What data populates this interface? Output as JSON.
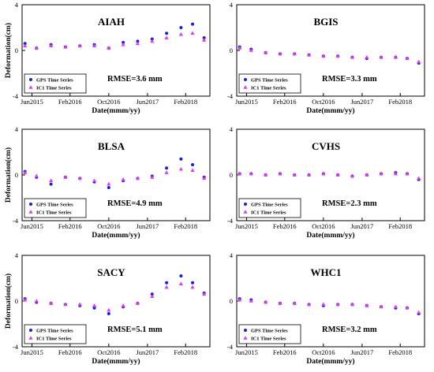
{
  "style": {
    "gps_color": "#1a1aee",
    "ic1_color": "#e23ce6"
  },
  "chart_data": [
    {
      "type": "scatter",
      "title": "AIAH",
      "xlabel": "Date(mmm/yy)",
      "ylabel": "Deformation(cm)",
      "xlim": [
        2015.25,
        2018.5
      ],
      "ylim": [
        -4,
        4
      ],
      "x_ticks": [
        2015.42,
        2016.08,
        2016.75,
        2017.42,
        2018.08
      ],
      "x_ticklabels": [
        "Jun2015",
        "Feb2016",
        "Oct2016",
        "Jun2017",
        "Feb2018"
      ],
      "y_ticks": [
        4,
        0,
        -4
      ],
      "y_ticklabels": [
        "4",
        "0",
        "-4"
      ],
      "annotation": "RMSE=3.6 mm",
      "legend": {
        "position": "bottom-left",
        "entries": [
          "GPS Time Series",
          "IC1 Time Series"
        ]
      },
      "series": [
        {
          "name": "GPS Time Series",
          "marker": "circle",
          "color": "#1a1aee",
          "x": [
            2015.3,
            2015.5,
            2015.75,
            2016.0,
            2016.25,
            2016.5,
            2016.75,
            2017.0,
            2017.25,
            2017.5,
            2017.75,
            2018.0,
            2018.2,
            2018.4
          ],
          "y": [
            0.6,
            0.2,
            0.5,
            0.3,
            0.4,
            0.5,
            0.2,
            0.7,
            0.8,
            1.0,
            1.5,
            2.0,
            2.3,
            1.1
          ]
        },
        {
          "name": "IC1 Time Series",
          "marker": "triangle",
          "color": "#e23ce6",
          "x": [
            2015.3,
            2015.5,
            2015.75,
            2016.0,
            2016.25,
            2016.5,
            2016.75,
            2017.0,
            2017.25,
            2017.5,
            2017.75,
            2018.0,
            2018.2,
            2018.4
          ],
          "y": [
            0.4,
            0.2,
            0.4,
            0.3,
            0.4,
            0.4,
            0.2,
            0.5,
            0.6,
            0.8,
            1.1,
            1.4,
            1.5,
            0.9
          ]
        }
      ]
    },
    {
      "type": "scatter",
      "title": "BGIS",
      "xlabel": "Date(mmm/yy)",
      "ylabel": "",
      "xlim": [
        2015.25,
        2018.5
      ],
      "ylim": [
        -4,
        4
      ],
      "x_ticks": [
        2015.42,
        2016.08,
        2016.75,
        2017.42,
        2018.08
      ],
      "x_ticklabels": [
        "Jun2015",
        "Feb2016",
        "Oct2016",
        "Jun2017",
        "Feb2018"
      ],
      "y_ticks": [
        4,
        0,
        -4
      ],
      "y_ticklabels": [
        "4",
        "0",
        "-4"
      ],
      "annotation": "RMSE=3.3 mm",
      "legend": {
        "position": "bottom-left",
        "entries": [
          "GPS Time Series",
          "IC1 Time Series"
        ]
      },
      "series": [
        {
          "name": "GPS Time Series",
          "marker": "circle",
          "color": "#1a1aee",
          "x": [
            2015.3,
            2015.5,
            2015.75,
            2016.0,
            2016.25,
            2016.5,
            2016.75,
            2017.0,
            2017.25,
            2017.5,
            2017.75,
            2018.0,
            2018.2,
            2018.4
          ],
          "y": [
            0.3,
            0.1,
            -0.2,
            -0.3,
            -0.3,
            -0.4,
            -0.5,
            -0.5,
            -0.6,
            -0.7,
            -0.6,
            -0.6,
            -0.7,
            -1.1
          ]
        },
        {
          "name": "IC1 Time Series",
          "marker": "triangle",
          "color": "#e23ce6",
          "x": [
            2015.3,
            2015.5,
            2015.75,
            2016.0,
            2016.25,
            2016.5,
            2016.75,
            2017.0,
            2017.25,
            2017.5,
            2017.75,
            2018.0,
            2018.2,
            2018.4
          ],
          "y": [
            0.2,
            0.0,
            -0.2,
            -0.3,
            -0.3,
            -0.4,
            -0.5,
            -0.5,
            -0.6,
            -0.6,
            -0.6,
            -0.6,
            -0.7,
            -1.0
          ]
        }
      ]
    },
    {
      "type": "scatter",
      "title": "BLSA",
      "xlabel": "Date(mmm/yy)",
      "ylabel": "Deformation(cm)",
      "xlim": [
        2015.25,
        2018.5
      ],
      "ylim": [
        -4,
        4
      ],
      "x_ticks": [
        2015.42,
        2016.08,
        2016.75,
        2017.42,
        2018.08
      ],
      "x_ticklabels": [
        "Jun2015",
        "Feb2016",
        "Oct2016",
        "Jun2017",
        "Feb2018"
      ],
      "y_ticks": [
        4,
        0,
        -4
      ],
      "y_ticklabels": [
        "4",
        "0",
        "-4"
      ],
      "annotation": "RMSE=4.9 mm",
      "legend": {
        "position": "bottom-left",
        "entries": [
          "GPS Time Series",
          "IC1 Time Series"
        ]
      },
      "series": [
        {
          "name": "GPS Time Series",
          "marker": "circle",
          "color": "#1a1aee",
          "x": [
            2015.3,
            2015.5,
            2015.75,
            2016.0,
            2016.25,
            2016.5,
            2016.75,
            2017.0,
            2017.25,
            2017.5,
            2017.75,
            2018.0,
            2018.2,
            2018.4
          ],
          "y": [
            0.3,
            -0.2,
            -0.8,
            -0.2,
            -0.3,
            -0.6,
            -1.1,
            -0.5,
            -0.3,
            -0.1,
            0.6,
            1.4,
            0.9,
            -0.2
          ]
        },
        {
          "name": "IC1 Time Series",
          "marker": "triangle",
          "color": "#e23ce6",
          "x": [
            2015.3,
            2015.5,
            2015.75,
            2016.0,
            2016.25,
            2016.5,
            2016.75,
            2017.0,
            2017.25,
            2017.5,
            2017.75,
            2018.0,
            2018.2,
            2018.4
          ],
          "y": [
            0.2,
            -0.1,
            -0.5,
            -0.2,
            -0.3,
            -0.5,
            -0.8,
            -0.4,
            -0.3,
            -0.2,
            0.2,
            0.5,
            0.4,
            -0.3
          ]
        }
      ]
    },
    {
      "type": "scatter",
      "title": "CVHS",
      "xlabel": "Date(mmm/yy)",
      "ylabel": "",
      "xlim": [
        2015.25,
        2018.5
      ],
      "ylim": [
        -4,
        4
      ],
      "x_ticks": [
        2015.42,
        2016.08,
        2016.75,
        2017.42,
        2018.08
      ],
      "x_ticklabels": [
        "Jun2015",
        "Feb2016",
        "Oct2016",
        "Jun2017",
        "Feb2018"
      ],
      "y_ticks": [
        4,
        0,
        -4
      ],
      "y_ticklabels": [
        "4",
        "0",
        "-4"
      ],
      "annotation": "RMSE=2.3 mm",
      "legend": {
        "position": "bottom-left",
        "entries": [
          "GPS Time Series",
          "IC1 Time Series"
        ]
      },
      "series": [
        {
          "name": "GPS Time Series",
          "marker": "circle",
          "color": "#1a1aee",
          "x": [
            2015.3,
            2015.5,
            2015.75,
            2016.0,
            2016.25,
            2016.5,
            2016.75,
            2017.0,
            2017.25,
            2017.5,
            2017.75,
            2018.0,
            2018.2,
            2018.4
          ],
          "y": [
            0.1,
            0.1,
            0.0,
            0.1,
            0.0,
            0.0,
            0.1,
            0.0,
            -0.1,
            0.0,
            0.1,
            0.2,
            0.1,
            -0.4
          ]
        },
        {
          "name": "IC1 Time Series",
          "marker": "triangle",
          "color": "#e23ce6",
          "x": [
            2015.3,
            2015.5,
            2015.75,
            2016.0,
            2016.25,
            2016.5,
            2016.75,
            2017.0,
            2017.25,
            2017.5,
            2017.75,
            2018.0,
            2018.2,
            2018.4
          ],
          "y": [
            0.1,
            0.1,
            0.0,
            0.1,
            0.0,
            0.0,
            0.1,
            0.0,
            -0.1,
            0.0,
            0.1,
            0.1,
            0.1,
            -0.3
          ]
        }
      ]
    },
    {
      "type": "scatter",
      "title": "SACY",
      "xlabel": "Date(mmm/yy)",
      "ylabel": "Deformation(cm)",
      "xlim": [
        2015.25,
        2018.5
      ],
      "ylim": [
        -4,
        4
      ],
      "x_ticks": [
        2015.42,
        2016.08,
        2016.75,
        2017.42,
        2018.08
      ],
      "x_ticklabels": [
        "Jun2015",
        "Feb2016",
        "Oct2016",
        "Jun2017",
        "Feb2018"
      ],
      "y_ticks": [
        4,
        0,
        -4
      ],
      "y_ticklabels": [
        "4",
        "0",
        "-4"
      ],
      "annotation": "RMSE=5.1 mm",
      "legend": {
        "position": "bottom-left",
        "entries": [
          "GPS Time Series",
          "IC1 Time Series"
        ]
      },
      "series": [
        {
          "name": "GPS Time Series",
          "marker": "circle",
          "color": "#1a1aee",
          "x": [
            2015.3,
            2015.5,
            2015.75,
            2016.0,
            2016.25,
            2016.5,
            2016.75,
            2017.0,
            2017.25,
            2017.5,
            2017.75,
            2018.0,
            2018.2,
            2018.4
          ],
          "y": [
            0.2,
            -0.1,
            -0.2,
            -0.3,
            -0.4,
            -0.6,
            -1.1,
            -0.5,
            -0.2,
            0.6,
            1.6,
            2.2,
            1.6,
            0.7
          ]
        },
        {
          "name": "IC1 Time Series",
          "marker": "triangle",
          "color": "#e23ce6",
          "x": [
            2015.3,
            2015.5,
            2015.75,
            2016.0,
            2016.25,
            2016.5,
            2016.75,
            2017.0,
            2017.25,
            2017.5,
            2017.75,
            2018.0,
            2018.2,
            2018.4
          ],
          "y": [
            0.1,
            0.0,
            -0.2,
            -0.3,
            -0.3,
            -0.4,
            -0.8,
            -0.4,
            -0.2,
            0.4,
            1.2,
            1.5,
            1.2,
            0.6
          ]
        }
      ]
    },
    {
      "type": "scatter",
      "title": "WHC1",
      "xlabel": "Date(mmm/yy)",
      "ylabel": "",
      "xlim": [
        2015.25,
        2018.5
      ],
      "ylim": [
        -4,
        4
      ],
      "x_ticks": [
        2015.42,
        2016.08,
        2016.75,
        2017.42,
        2018.08
      ],
      "x_ticklabels": [
        "Jun2015",
        "Feb2016",
        "Oct2016",
        "Jun2017",
        "Feb2018"
      ],
      "y_ticks": [
        4,
        0,
        -4
      ],
      "y_ticklabels": [
        "4",
        "0",
        "-4"
      ],
      "annotation": "RMSE=3.2 mm",
      "legend": {
        "position": "bottom-left",
        "entries": [
          "GPS Time Series",
          "IC1 Time Series"
        ]
      },
      "series": [
        {
          "name": "GPS Time Series",
          "marker": "circle",
          "color": "#1a1aee",
          "x": [
            2015.3,
            2015.5,
            2015.75,
            2016.0,
            2016.25,
            2016.5,
            2016.75,
            2017.0,
            2017.25,
            2017.5,
            2017.75,
            2018.0,
            2018.2,
            2018.4
          ],
          "y": [
            0.2,
            0.1,
            -0.1,
            -0.2,
            -0.2,
            -0.3,
            -0.4,
            -0.3,
            -0.3,
            -0.4,
            -0.5,
            -0.6,
            -0.6,
            -1.1
          ]
        },
        {
          "name": "IC1 Time Series",
          "marker": "triangle",
          "color": "#e23ce6",
          "x": [
            2015.3,
            2015.5,
            2015.75,
            2016.0,
            2016.25,
            2016.5,
            2016.75,
            2017.0,
            2017.25,
            2017.5,
            2017.75,
            2018.0,
            2018.2,
            2018.4
          ],
          "y": [
            0.1,
            0.0,
            -0.1,
            -0.2,
            -0.2,
            -0.3,
            -0.3,
            -0.3,
            -0.3,
            -0.4,
            -0.5,
            -0.5,
            -0.6,
            -1.0
          ]
        }
      ]
    }
  ]
}
